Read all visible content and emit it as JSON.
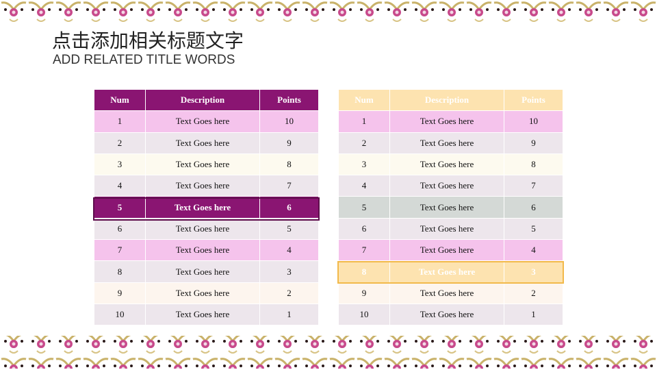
{
  "header": {
    "title": "点击添加相关标题文字",
    "subtitle": "ADD RELATED TITLE WORDS"
  },
  "tables": [
    {
      "columns": [
        "Num",
        "Description",
        "Points"
      ],
      "rows": [
        [
          "1",
          "Text Goes here",
          "10"
        ],
        [
          "2",
          "Text Goes here",
          "9"
        ],
        [
          "3",
          "Text Goes here",
          "8"
        ],
        [
          "4",
          "Text Goes here",
          "7"
        ],
        [
          "5",
          "Text Goes here",
          "6"
        ],
        [
          "6",
          "Text Goes here",
          "5"
        ],
        [
          "7",
          "Text Goes here",
          "4"
        ],
        [
          "8",
          "Text Goes here",
          "3"
        ],
        [
          "9",
          "Text Goes here",
          "2"
        ],
        [
          "10",
          "Text Goes here",
          "1"
        ]
      ]
    },
    {
      "columns": [
        "Num",
        "Description",
        "Points"
      ],
      "rows": [
        [
          "1",
          "Text Goes here",
          "10"
        ],
        [
          "2",
          "Text Goes here",
          "9"
        ],
        [
          "3",
          "Text Goes here",
          "8"
        ],
        [
          "4",
          "Text Goes here",
          "7"
        ],
        [
          "5",
          "Text Goes here",
          "6"
        ],
        [
          "6",
          "Text Goes here",
          "5"
        ],
        [
          "7",
          "Text Goes here",
          "4"
        ],
        [
          "8",
          "Text Goes here",
          "3"
        ],
        [
          "9",
          "Text Goes here",
          "2"
        ],
        [
          "10",
          "Text Goes here",
          "1"
        ]
      ]
    }
  ]
}
